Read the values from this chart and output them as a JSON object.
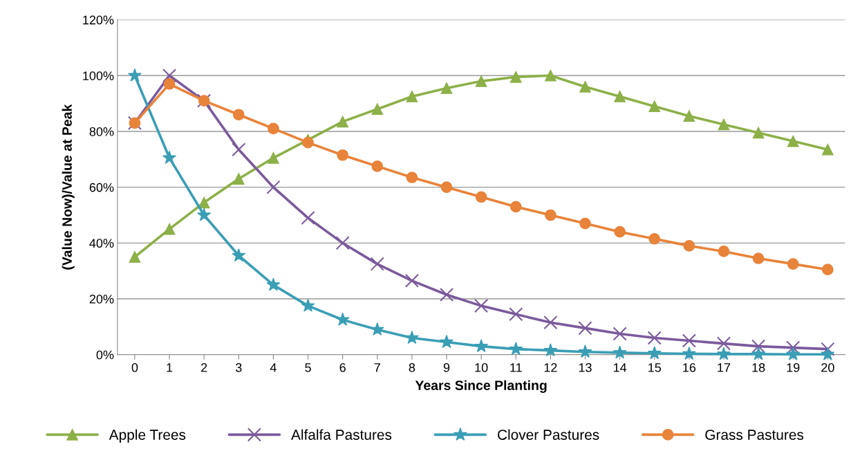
{
  "chart_data": {
    "type": "line",
    "xlabel": "Years Since Planting",
    "ylabel": "(Value Now)/Value at Peak",
    "categories": [
      "0",
      "1",
      "2",
      "3",
      "4",
      "5",
      "6",
      "7",
      "8",
      "9",
      "10",
      "11",
      "12",
      "13",
      "14",
      "15",
      "16",
      "17",
      "18",
      "19",
      "20"
    ],
    "ylim": [
      0,
      120
    ],
    "yticks": [
      {
        "value": 0,
        "label": "0%"
      },
      {
        "value": 20,
        "label": "20%"
      },
      {
        "value": 40,
        "label": "40%"
      },
      {
        "value": 60,
        "label": "60%"
      },
      {
        "value": 80,
        "label": "80%"
      },
      {
        "value": 100,
        "label": "100%"
      },
      {
        "value": 120,
        "label": "120%"
      }
    ],
    "grid": "y",
    "legend": "bottom",
    "line_style": "solid",
    "series": [
      {
        "name": "Apple Trees",
        "color": "#8db048",
        "marker": "triangle",
        "values": [
          35,
          45,
          54.5,
          63,
          70.5,
          77,
          83.5,
          88,
          92.5,
          95.5,
          98,
          99.5,
          100,
          96,
          92.5,
          89,
          85.5,
          82.5,
          79.5,
          76.5,
          73.5
        ]
      },
      {
        "name": "Alfalfa Pastures",
        "color": "#7b5a9c",
        "marker": "cross",
        "values": [
          83,
          100,
          91,
          73.5,
          60,
          49,
          40,
          32.5,
          26.5,
          21.5,
          17.5,
          14.5,
          11.5,
          9.5,
          7.5,
          6,
          5,
          4,
          3,
          2.5,
          2
        ]
      },
      {
        "name": "Clover Pastures",
        "color": "#3a9eb5",
        "marker": "star",
        "values": [
          100,
          70.5,
          50,
          35.5,
          25,
          17.5,
          12.5,
          9,
          6,
          4.5,
          3,
          2,
          1.5,
          1,
          0.7,
          0.5,
          0.3,
          0.2,
          0.2,
          0.1,
          0.1
        ]
      },
      {
        "name": "Grass Pastures",
        "color": "#e8833a",
        "marker": "circle",
        "values": [
          83,
          97,
          91,
          86,
          81,
          76,
          71.5,
          67.5,
          63.5,
          60,
          56.5,
          53,
          50,
          47,
          44,
          41.5,
          39,
          37,
          34.5,
          32.5,
          30.5
        ]
      }
    ]
  }
}
